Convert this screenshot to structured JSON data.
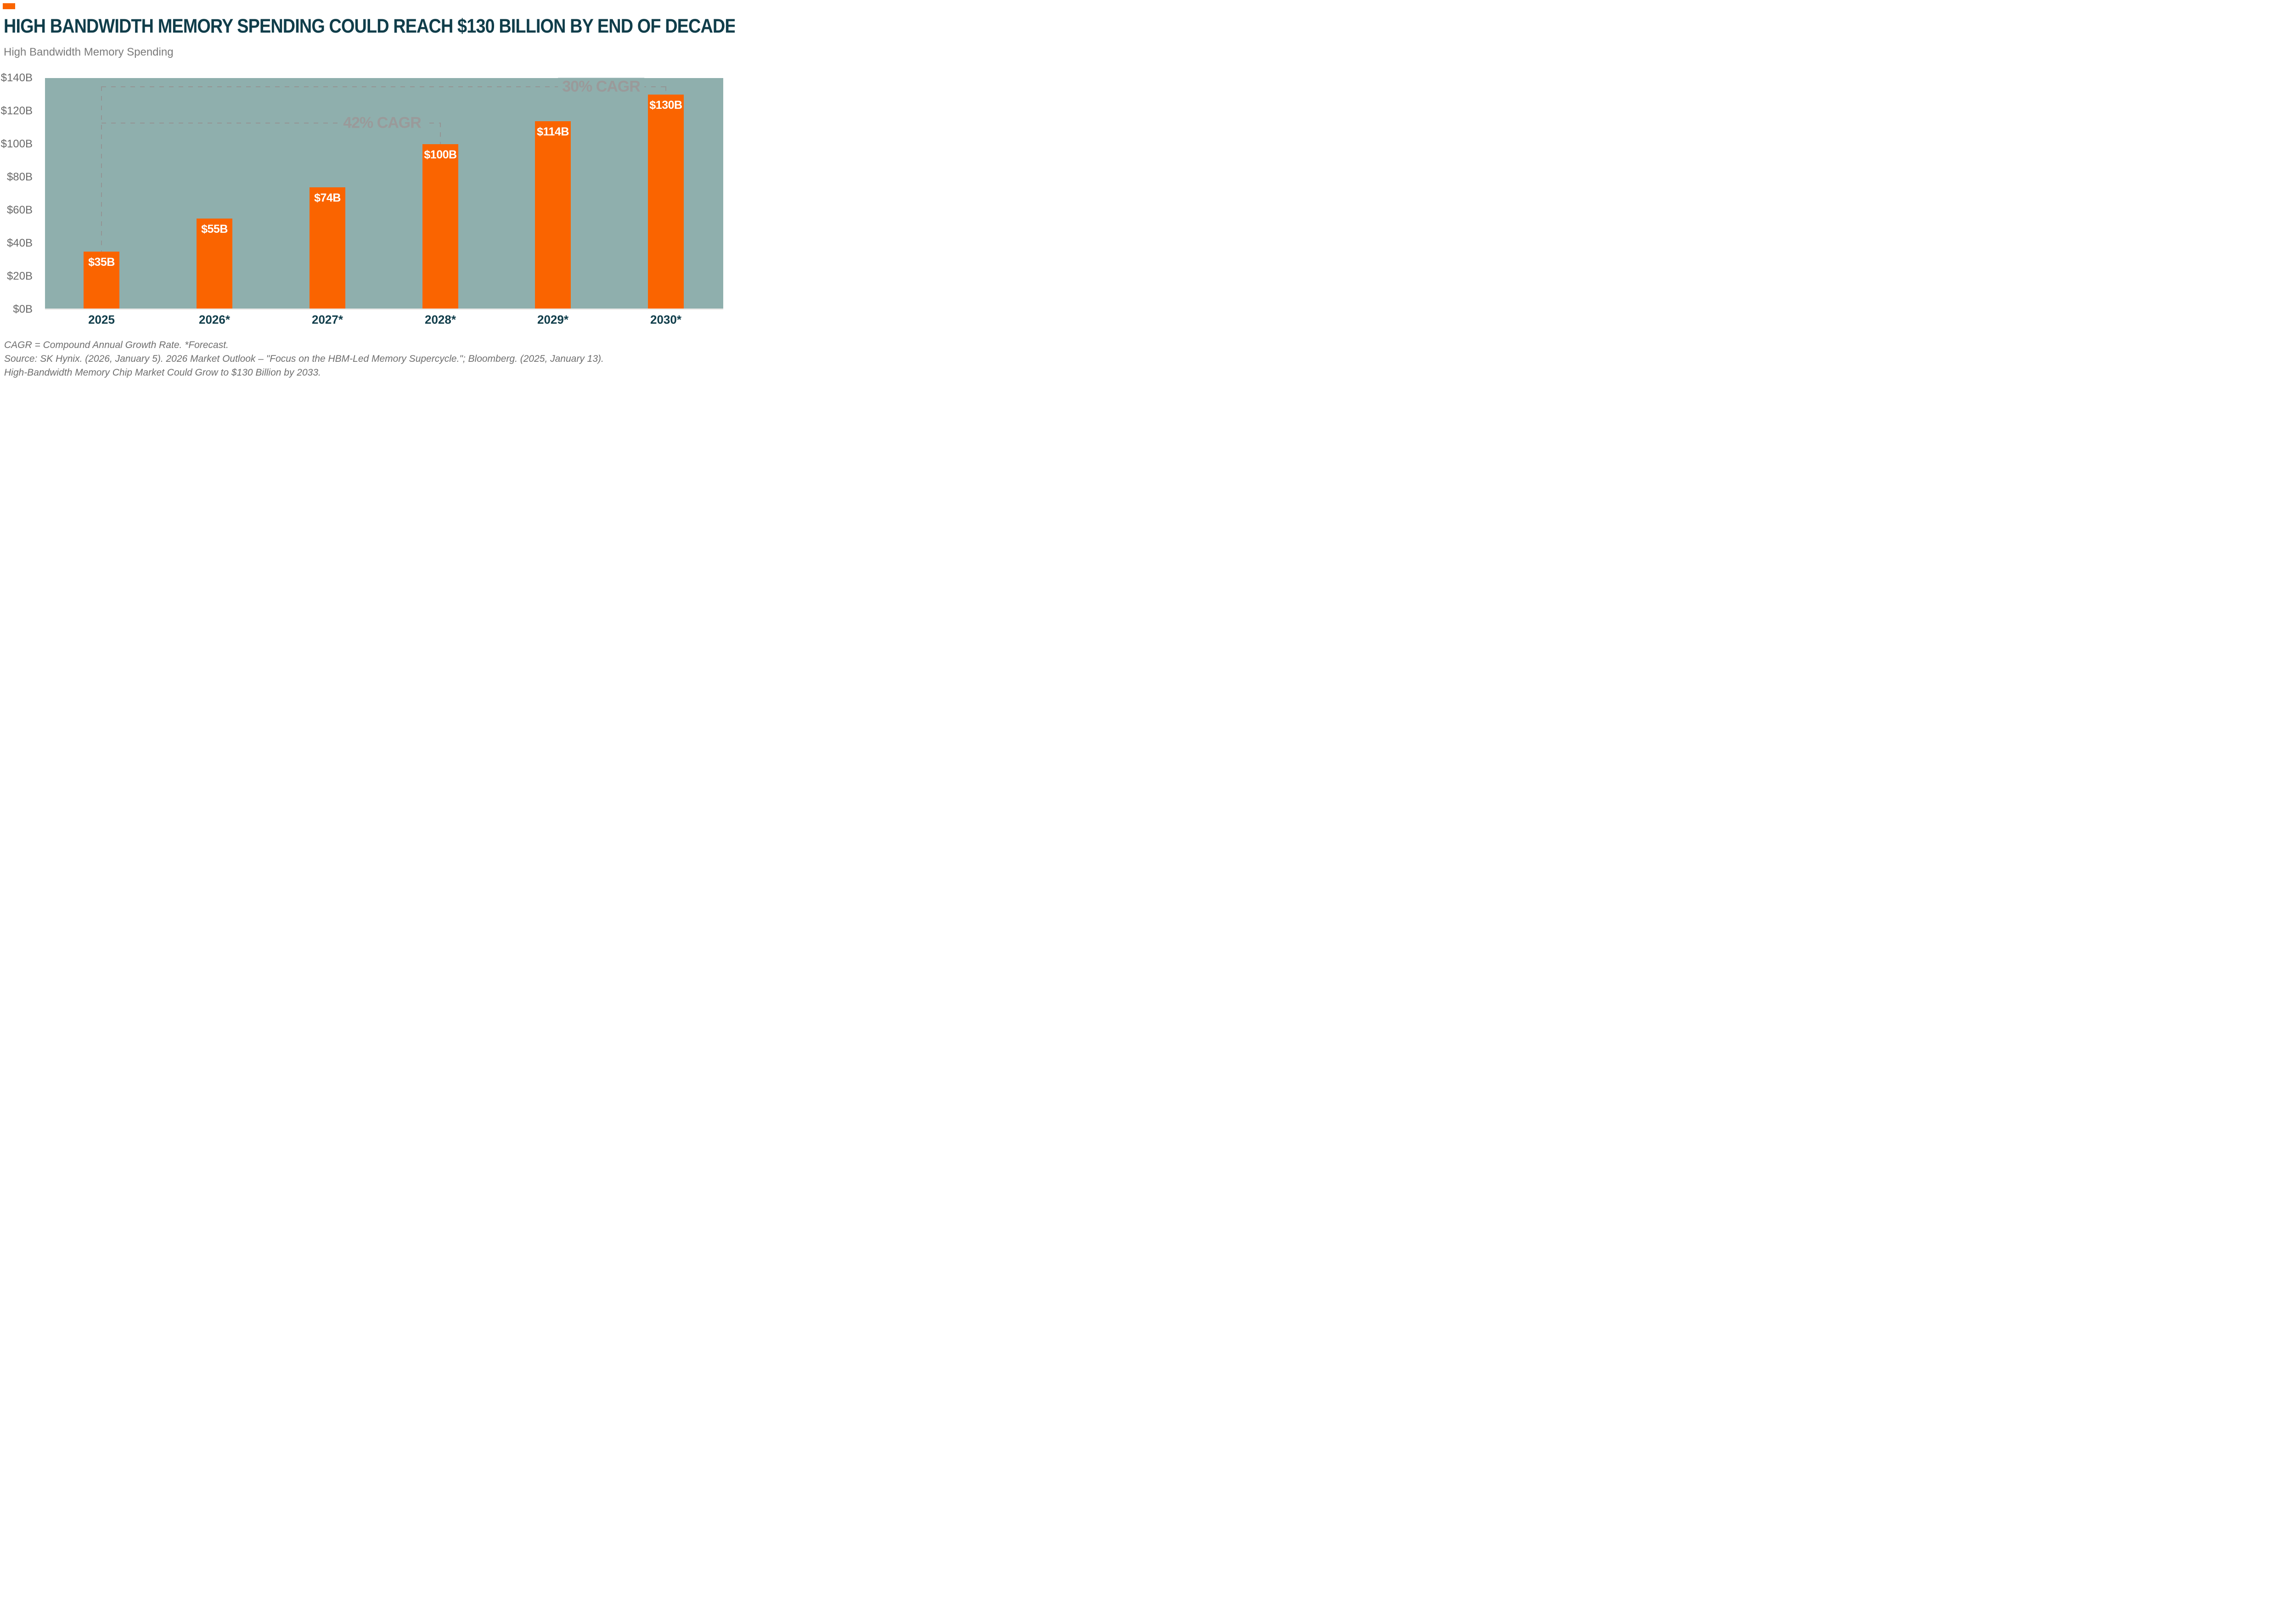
{
  "header": {
    "title": "HIGH BANDWIDTH MEMORY SPENDING COULD REACH $130 BILLION BY END OF DECADE",
    "subtitle": "High Bandwidth Memory Spending"
  },
  "chart_data": {
    "type": "bar",
    "title": "High Bandwidth Memory Spending",
    "unit": "USD billions",
    "categories": [
      "2025",
      "2026*",
      "2027*",
      "2028*",
      "2029*",
      "2030*"
    ],
    "values": [
      35,
      55,
      74,
      100,
      114,
      130
    ],
    "bar_labels": [
      "$35B",
      "$55B",
      "$74B",
      "$100B",
      "$114B",
      "$130B"
    ],
    "y_ticks": [
      "$140B",
      "$120B",
      "$100B",
      "$80B",
      "$60B",
      "$40B",
      "$20B",
      "$0B"
    ],
    "ylim": [
      0,
      140
    ],
    "grid": false,
    "legend": "none",
    "annotations": [
      {
        "label": "42% CAGR",
        "from_category": "2025",
        "to_category": "2028*",
        "line_level_billions": 113
      },
      {
        "label": "30% CAGR",
        "from_category": "2025",
        "to_category": "2030*",
        "line_level_billions": 135
      }
    ],
    "colors": {
      "bar": "#fa6400",
      "plot_background": "#8fafad",
      "axis_line": "#ecebe9",
      "y_tick_label": "#696969",
      "category_label": "#103d4a",
      "annotation": "#9a9a9a",
      "title": "#103d4a",
      "subtitle": "#7a7a7a",
      "accent_badge": "#fa6400"
    }
  },
  "footer": {
    "line1": "CAGR = Compound Annual Growth Rate. *Forecast.",
    "line2": "Source: SK Hynix. (2026, January 5). 2026 Market Outlook – \"Focus on the HBM-Led Memory Supercycle.\"; Bloomberg. (2025, January 13).",
    "line3": "High-Bandwidth Memory Chip Market Could Grow to $130 Billion by 2033."
  }
}
